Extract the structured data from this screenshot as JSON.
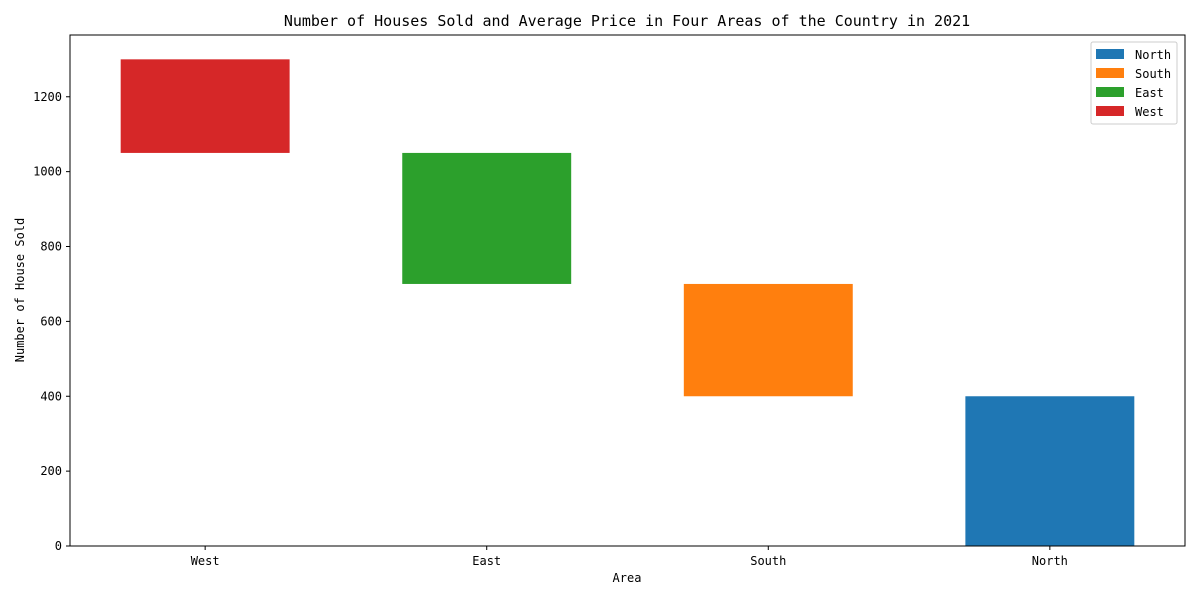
{
  "chart_data": {
    "type": "bar",
    "subtype": "waterfall",
    "title": "Number of Houses Sold and Average Price in Four Areas of the Country in 2021",
    "xlabel": "Area",
    "ylabel": "Number of House Sold",
    "categories": [
      "West",
      "East",
      "South",
      "North"
    ],
    "ylim": [
      0,
      1365
    ],
    "yticks": [
      0,
      200,
      400,
      600,
      800,
      1000,
      1200
    ],
    "bars": [
      {
        "category": "West",
        "bottom": 1050,
        "top": 1300,
        "color": "#d62728"
      },
      {
        "category": "East",
        "bottom": 700,
        "top": 1050,
        "color": "#2ca02c"
      },
      {
        "category": "South",
        "bottom": 400,
        "top": 700,
        "color": "#ff7f0e"
      },
      {
        "category": "North",
        "bottom": 0,
        "top": 400,
        "color": "#1f77b4"
      }
    ],
    "legend": {
      "position": "top-right",
      "entries": [
        {
          "label": "North",
          "color": "#1f77b4"
        },
        {
          "label": "South",
          "color": "#ff7f0e"
        },
        {
          "label": "East",
          "color": "#2ca02c"
        },
        {
          "label": "West",
          "color": "#d62728"
        }
      ]
    },
    "grid": false
  }
}
